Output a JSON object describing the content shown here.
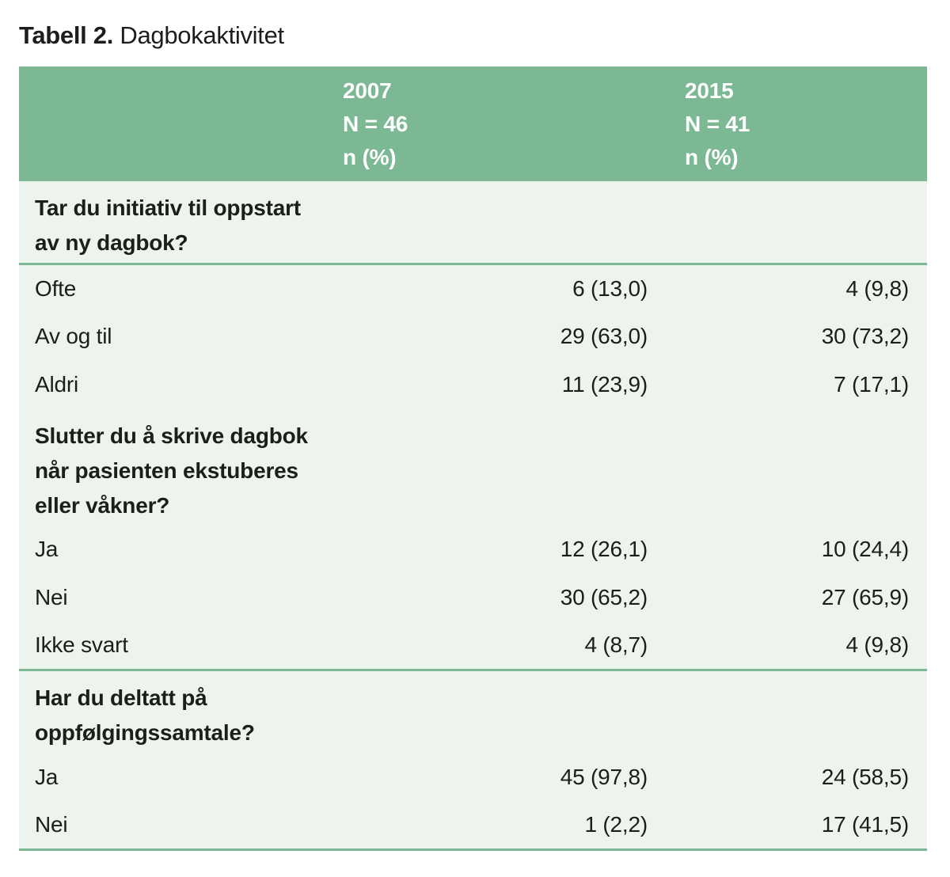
{
  "title": {
    "prefix": "Tabell 2.",
    "suffix": "Dagbokaktivitet"
  },
  "colors": {
    "header_bg": "#7cb893",
    "body_bg": "#edf4ee",
    "rule": "#7cb893",
    "header_text": "#ffffff",
    "text": "#1d1d1b",
    "page_bg": "#ffffff"
  },
  "table": {
    "header": {
      "col_2007": [
        "2007",
        "N = 46",
        "n (%)"
      ],
      "col_2015": [
        "2015",
        "N = 41",
        "n (%)"
      ]
    },
    "sections": [
      {
        "question": [
          "Tar du initiativ til oppstart",
          "av ny dagbok?"
        ],
        "rule_after_question": true,
        "rule_after_rows": false,
        "rows": [
          {
            "label": "Ofte",
            "y2007": "6 (13,0)",
            "y2015": "4 (9,8)"
          },
          {
            "label": "Av og til",
            "y2007": "29 (63,0)",
            "y2015": "30 (73,2)"
          },
          {
            "label": "Aldri",
            "y2007": "11 (23,9)",
            "y2015": "7 (17,1)"
          }
        ]
      },
      {
        "question": [
          "Slutter du å skrive dagbok",
          "når pasienten ekstuberes",
          "eller våkner?"
        ],
        "rule_after_question": false,
        "rule_after_rows": true,
        "rows": [
          {
            "label": "Ja",
            "y2007": "12 (26,1)",
            "y2015": "10 (24,4)"
          },
          {
            "label": "Nei",
            "y2007": "30 (65,2)",
            "y2015": "27 (65,9)"
          },
          {
            "label": "Ikke svart",
            "y2007": "4 (8,7)",
            "y2015": "4 (9,8)"
          }
        ]
      },
      {
        "question": [
          "Har du deltatt på",
          "oppfølgingssamtale?"
        ],
        "rule_after_question": false,
        "rule_after_rows": true,
        "rows": [
          {
            "label": "Ja",
            "y2007": "45 (97,8)",
            "y2015": "24 (58,5)"
          },
          {
            "label": "Nei",
            "y2007": "1 (2,2)",
            "y2015": "17 (41,5)"
          }
        ]
      }
    ]
  }
}
